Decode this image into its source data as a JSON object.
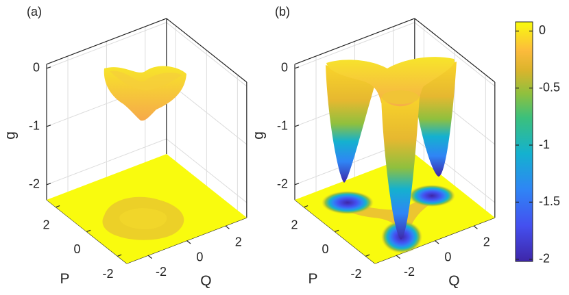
{
  "chart_data": [
    {
      "type": "surface3d",
      "panel_label": "(a)",
      "xlabel": "Q",
      "ylabel": "P",
      "zlabel": "g",
      "xlim": [
        -3.1,
        3.1
      ],
      "ylim": [
        -2.6,
        2.6
      ],
      "zlim": [
        -2.26,
        0.07
      ],
      "xticks": [
        -2,
        0,
        2
      ],
      "yticks": [
        -2,
        0,
        2
      ],
      "zticks": [
        -2,
        -1,
        0
      ],
      "grid": true
    },
    {
      "type": "surface3d",
      "panel_label": "(b)",
      "xlabel": "Q",
      "ylabel": "P",
      "zlabel": "g",
      "xlim": [
        -3.1,
        3.1
      ],
      "ylim": [
        -2.6,
        2.6
      ],
      "zlim": [
        -2.26,
        0.07
      ],
      "xticks": [
        -2,
        0,
        2
      ],
      "yticks": [
        -2,
        0,
        2
      ],
      "zticks": [
        -2,
        -1,
        0
      ],
      "grid": true
    }
  ],
  "colorbar": {
    "clim": [
      -2.02,
      0.08
    ],
    "ticks": [
      0,
      -0.5,
      -1,
      -1.5,
      -2
    ]
  }
}
